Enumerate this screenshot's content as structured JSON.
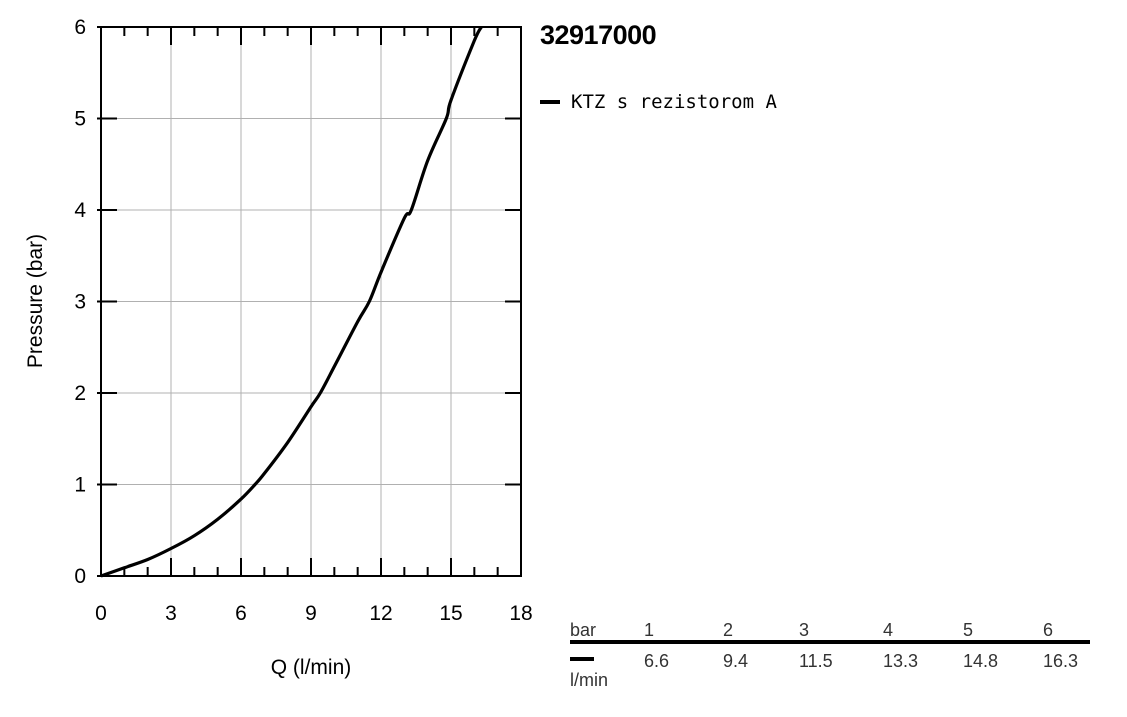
{
  "page_title": "32917000",
  "legend": {
    "label": "KTZ s rezistorom A",
    "color": "#000000"
  },
  "chart_data": {
    "type": "line",
    "xlabel": "Q (l/min)",
    "ylabel": "Pressure (bar)",
    "xlim": [
      0,
      18
    ],
    "ylim": [
      0,
      6
    ],
    "x_ticks": [
      "0",
      "3",
      "6",
      "9",
      "12",
      "15",
      "18"
    ],
    "y_ticks": [
      "0",
      "1",
      "2",
      "3",
      "4",
      "5",
      "6"
    ],
    "grid": true,
    "series": [
      {
        "name": "KTZ s rezistorom A",
        "color": "#000000",
        "points": [
          [
            0,
            0
          ],
          [
            1,
            0.09
          ],
          [
            2,
            0.18
          ],
          [
            3,
            0.3
          ],
          [
            4,
            0.44
          ],
          [
            5,
            0.62
          ],
          [
            6,
            0.84
          ],
          [
            6.6,
            1.0
          ],
          [
            7,
            1.12
          ],
          [
            8,
            1.46
          ],
          [
            9,
            1.85
          ],
          [
            9.4,
            2.0
          ],
          [
            10,
            2.29
          ],
          [
            11,
            2.78
          ],
          [
            11.5,
            3.0
          ],
          [
            12,
            3.32
          ],
          [
            13,
            3.91
          ],
          [
            13.3,
            4.0
          ],
          [
            14,
            4.54
          ],
          [
            14.8,
            5.0
          ],
          [
            15,
            5.2
          ],
          [
            16,
            5.85
          ],
          [
            16.3,
            6.0
          ]
        ]
      }
    ]
  },
  "table": {
    "row1_unit": "bar",
    "row1_values": [
      "1",
      "2",
      "3",
      "4",
      "5",
      "6"
    ],
    "row2_unit": "l/min",
    "row2_values": [
      "6.6",
      "9.4",
      "11.5",
      "13.3",
      "14.8",
      "16.3"
    ]
  }
}
